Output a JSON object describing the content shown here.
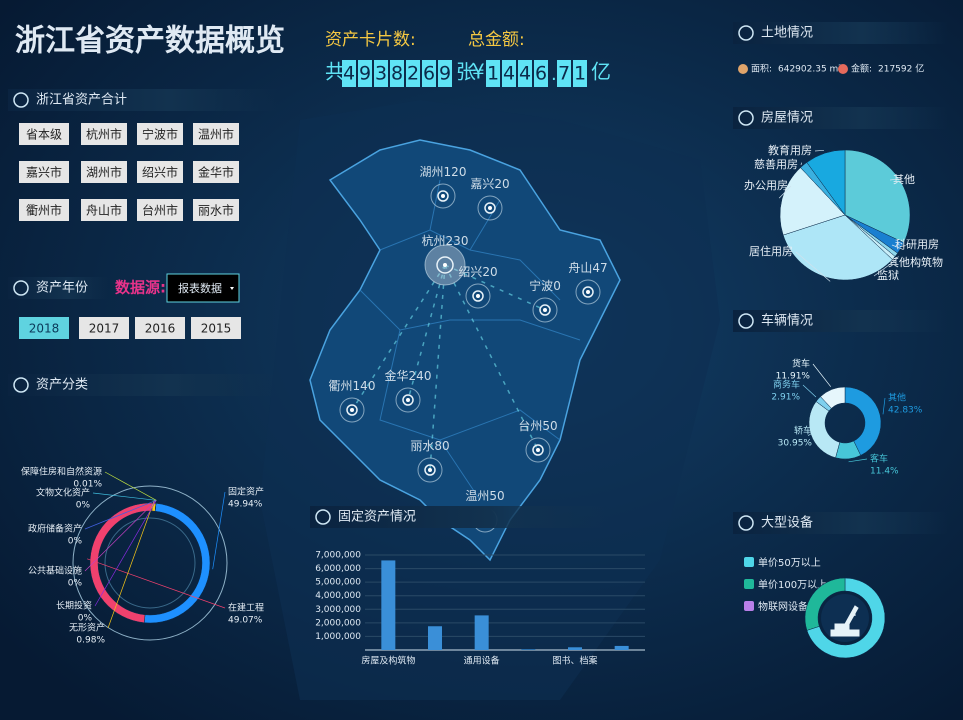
{
  "header": {
    "title": "浙江省资产数据概览"
  },
  "summary": {
    "card_label": "资产卡片数:",
    "card_prefix": "共",
    "card_digits": [
      "4",
      "9",
      "3",
      "8",
      "2",
      "6",
      "9"
    ],
    "card_suffix": "张",
    "amount_label": "总金额:",
    "amount_prefix": "¥",
    "amount_digits": [
      "1",
      "4",
      "4",
      "6",
      ".",
      "7",
      "1"
    ],
    "amount_suffix": "亿"
  },
  "regions": {
    "title": "浙江省资产合计",
    "buttons": [
      "省本级",
      "杭州市",
      "宁波市",
      "温州市",
      "嘉兴市",
      "湖州市",
      "绍兴市",
      "金华市",
      "衢州市",
      "舟山市",
      "台州市",
      "丽水市"
    ]
  },
  "years": {
    "title": "资产年份",
    "source_label": "数据源:",
    "source_value": "报表数据",
    "options": [
      "2018",
      "2017",
      "2016",
      "2015"
    ],
    "active": "2018"
  },
  "land": {
    "title": "土地情况",
    "items": [
      {
        "label": "面积:",
        "value": "642902.35 m²",
        "color": "#e0a46a"
      },
      {
        "label": "金额:",
        "value": "217592 亿",
        "color": "#e56a5c"
      }
    ]
  },
  "map": {
    "points": [
      {
        "name": "湖州",
        "value": 120
      },
      {
        "name": "嘉兴",
        "value": 20
      },
      {
        "name": "杭州",
        "value": 230
      },
      {
        "name": "绍兴",
        "value": 20
      },
      {
        "name": "宁波",
        "value": 0
      },
      {
        "name": "舟山",
        "value": 47
      },
      {
        "name": "衢州",
        "value": 140
      },
      {
        "name": "金华",
        "value": 240
      },
      {
        "name": "丽水",
        "value": 80
      },
      {
        "name": "台州",
        "value": 50
      },
      {
        "name": "温州",
        "value": 50
      }
    ]
  },
  "chart_data": [
    {
      "type": "donut",
      "title": "资产分类",
      "categories": [
        "固定资产",
        "在建工程",
        "无形资产",
        "长期投资",
        "公共基础设施",
        "政府储备资产",
        "文物文化资产",
        "保障住房和自然资源"
      ],
      "values": [
        49.94,
        49.07,
        0.98,
        0,
        0,
        0,
        0,
        0.01
      ],
      "value_labels": [
        "49.94%",
        "49.07%",
        "0.98%",
        "0%",
        "0%",
        "0%",
        "0%",
        "0.01%"
      ],
      "colors": [
        "#1e90ff",
        "#f0416e",
        "#f5c518",
        "#8a2be2",
        "#c040c0",
        "#4060e0",
        "#40c0e0",
        "#c0e040"
      ]
    },
    {
      "type": "bar",
      "title": "固定资产情况",
      "categories": [
        "房屋及构筑物",
        null,
        "通用设备",
        null,
        "图书、档案",
        null
      ],
      "values": [
        6600000,
        1750000,
        2550000,
        50000,
        200000,
        300000
      ],
      "color": "#3a8fd8",
      "ylim": [
        0,
        7000000
      ],
      "yticks": [
        {
          "value": 1000000,
          "label": "1,000,000"
        },
        {
          "value": 2000000,
          "label": "2,000,000"
        },
        {
          "value": 3000000,
          "label": "3,000,000"
        },
        {
          "value": 4000000,
          "label": "4,000,000"
        },
        {
          "value": 5000000,
          "label": "5,000,000"
        },
        {
          "value": 6000000,
          "label": "6,000,000"
        },
        {
          "value": 7000000,
          "label": "7,000,000"
        }
      ],
      "grid": true
    },
    {
      "type": "pie",
      "title": "房屋情况",
      "categories": [
        "其他",
        "科研用房",
        "其他构筑物",
        "监狱",
        "居住用房",
        "办公用房",
        "慈善用房",
        "教育用房"
      ],
      "values": [
        32,
        3,
        1,
        1,
        33,
        18,
        2,
        10
      ],
      "colors": [
        "#5ccbd9",
        "#1a7fd0",
        "#8fd8ec",
        "#c8eef8",
        "#aee6f7",
        "#d4f2fb",
        "#3ab0e0",
        "#18a9e0"
      ]
    },
    {
      "type": "donut",
      "title": "车辆情况",
      "categories": [
        "其他",
        "客车",
        "轿车",
        "商务车",
        "货车"
      ],
      "values": [
        42.83,
        11.4,
        30.95,
        2.91,
        11.91
      ],
      "value_labels": [
        "42.83%",
        "11.4%",
        "30.95%",
        "2.91%",
        "11.91%"
      ],
      "colors": [
        "#1e9be0",
        "#47c6d8",
        "#b8e8f5",
        "#7fd0ee",
        "#e6f6fc"
      ]
    },
    {
      "type": "donut",
      "title": "大型设备",
      "categories": [
        "单价50万以上",
        "单价100万以上",
        "物联网设备"
      ],
      "values": [
        70,
        30,
        0
      ],
      "colors": [
        "#4fd6e8",
        "#1fb89a",
        "#b87fe8"
      ]
    }
  ]
}
